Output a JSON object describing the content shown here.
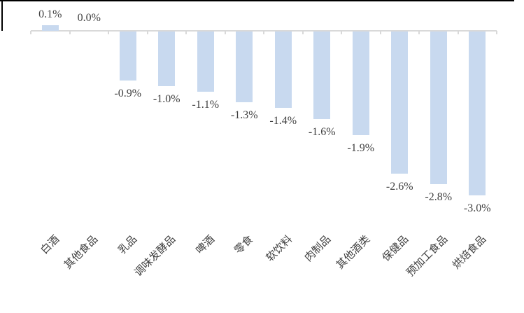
{
  "page": {
    "background": "#FFFFFF",
    "top_border_color": "#000000"
  },
  "chart_data": {
    "type": "bar",
    "title": "",
    "xlabel": "",
    "ylabel": "",
    "categories": [
      "白酒",
      "其他食品",
      "乳品",
      "调味发酵品",
      "啤酒",
      "零食",
      "软饮料",
      "肉制品",
      "其他酒类",
      "保健品",
      "预加工食品",
      "烘焙食品"
    ],
    "values": [
      0.1,
      0.0,
      -0.9,
      -1.0,
      -1.1,
      -1.3,
      -1.4,
      -1.6,
      -1.9,
      -2.6,
      -2.8,
      -3.0
    ],
    "value_labels": [
      "0.1%",
      "0.0%",
      "-0.9%",
      "-1.0%",
      "-1.1%",
      "-1.3%",
      "-1.4%",
      "-1.6%",
      "-1.9%",
      "-2.6%",
      "-2.8%",
      "-3.0%"
    ],
    "unit": "%",
    "ylim": [
      -3.5,
      0.5
    ],
    "grid": false,
    "legend": null,
    "data_labels_visible": true,
    "category_label_rotation_deg": 45,
    "bar_color": "#C8D9EF",
    "axis_color": "#D9D9D9",
    "text_color": "#3F3F3F"
  }
}
